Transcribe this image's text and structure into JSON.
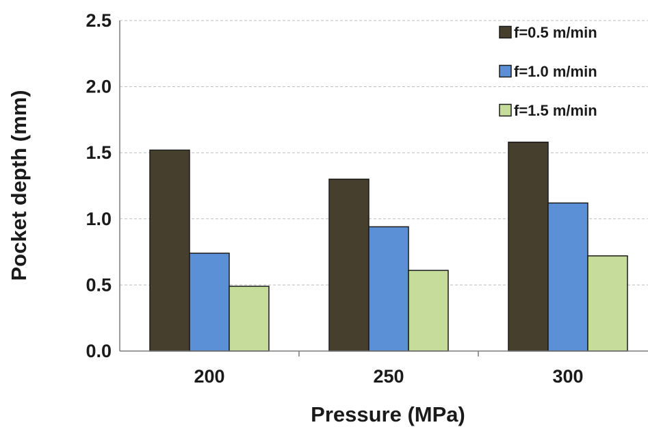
{
  "chart_data": {
    "type": "bar",
    "categories": [
      "200",
      "250",
      "300"
    ],
    "series": [
      {
        "name": "f=0.5 m/min",
        "values": [
          1.52,
          1.3,
          1.58
        ],
        "color": "#463f2d"
      },
      {
        "name": "f=1.0 m/min",
        "values": [
          0.74,
          0.94,
          1.12
        ],
        "color": "#5b8fd6"
      },
      {
        "name": "f=1.5 m/min",
        "values": [
          0.49,
          0.61,
          0.72
        ],
        "color": "#c5dc9a"
      }
    ],
    "xlabel": "Pressure (MPa)",
    "ylabel": "Pocket depth (mm)",
    "ylim": [
      0,
      2.5
    ],
    "yticks": [
      "0.0",
      "0.5",
      "1.0",
      "1.5",
      "2.0",
      "2.5"
    ],
    "grid": true,
    "legend_position": "top-right"
  }
}
